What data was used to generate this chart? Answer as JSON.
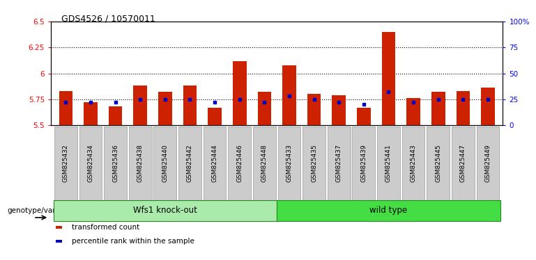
{
  "title": "GDS4526 / 10570011",
  "samples": [
    "GSM825432",
    "GSM825434",
    "GSM825436",
    "GSM825438",
    "GSM825440",
    "GSM825442",
    "GSM825444",
    "GSM825446",
    "GSM825448",
    "GSM825433",
    "GSM825435",
    "GSM825437",
    "GSM825439",
    "GSM825441",
    "GSM825443",
    "GSM825445",
    "GSM825447",
    "GSM825449"
  ],
  "red_values": [
    5.83,
    5.72,
    5.68,
    5.88,
    5.82,
    5.88,
    5.67,
    6.12,
    5.82,
    6.08,
    5.8,
    5.79,
    5.67,
    6.4,
    5.76,
    5.82,
    5.83,
    5.86
  ],
  "blue_values": [
    22,
    22,
    22,
    25,
    25,
    25,
    22,
    25,
    22,
    28,
    25,
    22,
    20,
    32,
    22,
    25,
    25,
    25
  ],
  "ylim_left": [
    5.5,
    6.5
  ],
  "ylim_right": [
    0,
    100
  ],
  "yticks_left": [
    5.5,
    5.75,
    6.0,
    6.25,
    6.5
  ],
  "yticks_right": [
    0,
    25,
    50,
    75,
    100
  ],
  "ytick_labels_left": [
    "5.5",
    "5.75",
    "6",
    "6.25",
    "6.5"
  ],
  "ytick_labels_right": [
    "0",
    "25",
    "50",
    "75",
    "100%"
  ],
  "hlines": [
    5.75,
    6.0,
    6.25
  ],
  "group1_label": "Wfs1 knock-out",
  "group2_label": "wild type",
  "group1_n": 9,
  "group2_n": 9,
  "group1_color": "#AAEAAA",
  "group2_color": "#44DD44",
  "group_edge_color": "#228822",
  "bar_color": "#CC2200",
  "dot_color": "#0000CC",
  "legend_label_red": "transformed count",
  "legend_label_blue": "percentile rank within the sample",
  "xlabel_left": "genotype/variation",
  "bar_width": 0.55,
  "base_value": 5.5,
  "bg_color": "#FFFFFF",
  "tick_bg_color": "#CCCCCC",
  "tick_edge_color": "#999999"
}
